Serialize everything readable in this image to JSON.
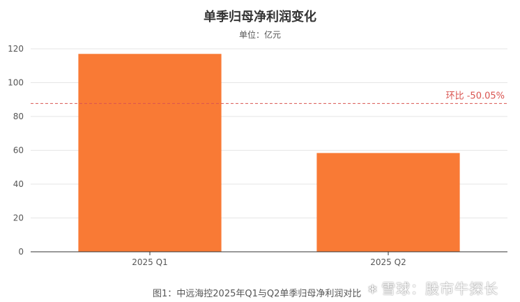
{
  "colors": {
    "bar": "#f97a35",
    "reference_line": "#d9534f",
    "grid": "#e6e6e6",
    "axis": "#333333",
    "text": "#555555"
  },
  "caption": "图1：中远海控2025年Q1与Q2单季归母净利润对比",
  "watermark": {
    "logo_icon": "snowball-icon",
    "text": "雪球：股市牛探长"
  },
  "chart_data": {
    "type": "bar",
    "title": "单季归母净利润变化",
    "subtitle": "单位：亿元",
    "categories": [
      "2025 Q1",
      "2025 Q2"
    ],
    "values": [
      117,
      58.4
    ],
    "ylim": [
      0,
      120
    ],
    "yticks": [
      0,
      20,
      40,
      60,
      80,
      100,
      120
    ],
    "grid": true,
    "reference_line": {
      "value": 87.7,
      "label": "环比 -50.05%",
      "style": "dashed"
    }
  }
}
